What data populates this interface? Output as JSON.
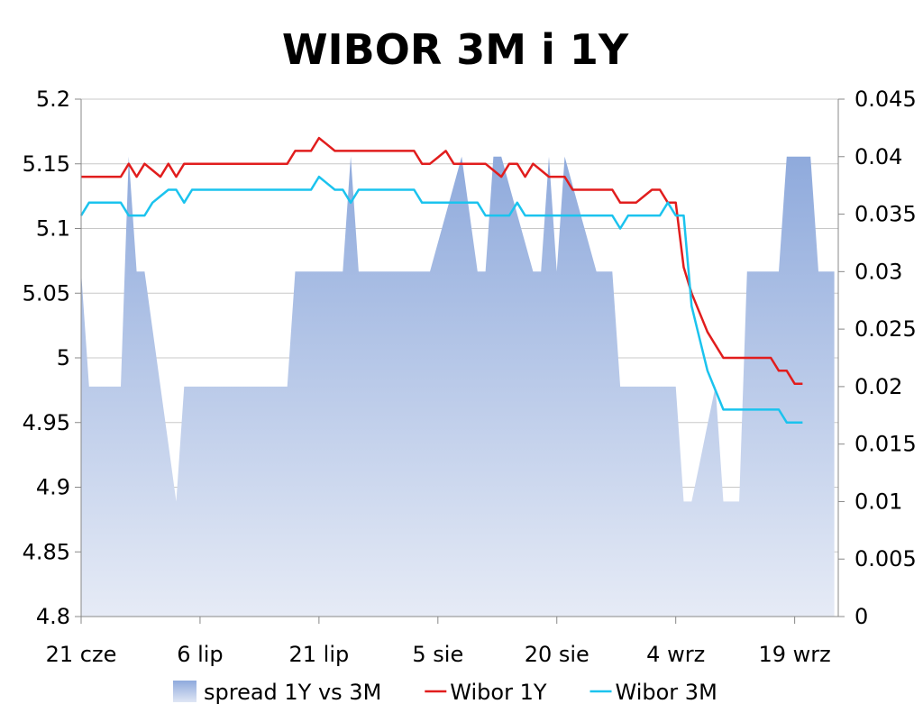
{
  "chart_data": {
    "title": "WIBOR 3M i 1Y",
    "left_axis": {
      "min": 4.8,
      "max": 5.2,
      "ticks": [
        "5.2",
        "5.15",
        "5.1",
        "5.05",
        "5",
        "4.95",
        "4.9",
        "4.85",
        "4.8"
      ]
    },
    "right_axis": {
      "min": 0,
      "max": 0.045,
      "ticks": [
        "0.045",
        "0.04",
        "0.035",
        "0.03",
        "0.025",
        "0.02",
        "0.015",
        "0.01",
        "0.005",
        "0"
      ]
    },
    "x_axis": {
      "start": "21 cze",
      "end": "21 wrz",
      "labels": [
        {
          "text": "21 cze",
          "day": 0
        },
        {
          "text": "6 lip",
          "day": 15
        },
        {
          "text": "21 lip",
          "day": 30
        },
        {
          "text": "5 sie",
          "day": 45
        },
        {
          "text": "20 sie",
          "day": 60
        },
        {
          "text": "4 wrz",
          "day": 75
        },
        {
          "text": "19 wrz",
          "day": 90
        }
      ]
    },
    "series": [
      {
        "name": "spread 1Y vs 3M",
        "type": "area",
        "axis": "right",
        "color": "#8faadc",
        "points": [
          [
            0,
            0.03
          ],
          [
            1,
            0.02
          ],
          [
            2,
            0.02
          ],
          [
            3,
            0.02
          ],
          [
            4,
            0.02
          ],
          [
            5,
            0.02
          ],
          [
            6,
            0.04
          ],
          [
            7,
            0.03
          ],
          [
            8,
            0.03
          ],
          [
            9,
            0.025
          ],
          [
            10,
            0.02
          ],
          [
            11,
            0.015
          ],
          [
            12,
            0.01
          ],
          [
            13,
            0.02
          ],
          [
            14,
            0.02
          ],
          [
            15,
            0.02
          ],
          [
            16,
            0.02
          ],
          [
            17,
            0.02
          ],
          [
            18,
            0.02
          ],
          [
            19,
            0.02
          ],
          [
            20,
            0.02
          ],
          [
            21,
            0.02
          ],
          [
            22,
            0.02
          ],
          [
            23,
            0.02
          ],
          [
            24,
            0.02
          ],
          [
            25,
            0.02
          ],
          [
            26,
            0.02
          ],
          [
            27,
            0.03
          ],
          [
            28,
            0.03
          ],
          [
            29,
            0.03
          ],
          [
            30,
            0.03
          ],
          [
            31,
            0.03
          ],
          [
            32,
            0.03
          ],
          [
            33,
            0.03
          ],
          [
            34,
            0.04
          ],
          [
            35,
            0.03
          ],
          [
            36,
            0.03
          ],
          [
            37,
            0.03
          ],
          [
            38,
            0.03
          ],
          [
            39,
            0.03
          ],
          [
            40,
            0.03
          ],
          [
            41,
            0.03
          ],
          [
            42,
            0.03
          ],
          [
            43,
            0.03
          ],
          [
            44,
            0.03
          ],
          [
            45,
            0.0325
          ],
          [
            46,
            0.035
          ],
          [
            47,
            0.0375
          ],
          [
            48,
            0.04
          ],
          [
            49,
            0.035
          ],
          [
            50,
            0.03
          ],
          [
            51,
            0.03
          ],
          [
            52,
            0.04
          ],
          [
            53,
            0.04
          ],
          [
            54,
            0.0375
          ],
          [
            55,
            0.035
          ],
          [
            56,
            0.0325
          ],
          [
            57,
            0.03
          ],
          [
            58,
            0.03
          ],
          [
            59,
            0.04
          ],
          [
            60,
            0.03
          ],
          [
            61,
            0.04
          ],
          [
            62,
            0.0375
          ],
          [
            63,
            0.035
          ],
          [
            64,
            0.0325
          ],
          [
            65,
            0.03
          ],
          [
            66,
            0.03
          ],
          [
            67,
            0.03
          ],
          [
            68,
            0.02
          ],
          [
            69,
            0.02
          ],
          [
            70,
            0.02
          ],
          [
            71,
            0.02
          ],
          [
            72,
            0.02
          ],
          [
            73,
            0.02
          ],
          [
            74,
            0.02
          ],
          [
            75,
            0.02
          ],
          [
            76,
            0.01
          ],
          [
            77,
            0.01
          ],
          [
            78,
            0.0133
          ],
          [
            79,
            0.0167
          ],
          [
            80,
            0.02
          ],
          [
            81,
            0.01
          ],
          [
            82,
            0.01
          ],
          [
            83,
            0.01
          ],
          [
            84,
            0.03
          ],
          [
            85,
            0.03
          ],
          [
            86,
            0.03
          ],
          [
            87,
            0.03
          ],
          [
            88,
            0.03
          ],
          [
            89,
            0.04
          ],
          [
            90,
            0.04
          ],
          [
            91,
            0.04
          ],
          [
            92,
            0.04
          ],
          [
            93,
            0.03
          ],
          [
            94,
            0.03
          ],
          [
            95,
            0.03
          ]
        ]
      },
      {
        "name": "Wibor 1Y",
        "type": "line",
        "axis": "left",
        "color": "#e11d1d",
        "points": [
          [
            0,
            5.14
          ],
          [
            1,
            5.14
          ],
          [
            2,
            5.14
          ],
          [
            3,
            5.14
          ],
          [
            4,
            5.14
          ],
          [
            5,
            5.14
          ],
          [
            6,
            5.15
          ],
          [
            7,
            5.14
          ],
          [
            8,
            5.15
          ],
          [
            9,
            5.145
          ],
          [
            10,
            5.14
          ],
          [
            11,
            5.15
          ],
          [
            12,
            5.14
          ],
          [
            13,
            5.15
          ],
          [
            14,
            5.15
          ],
          [
            15,
            5.15
          ],
          [
            16,
            5.15
          ],
          [
            17,
            5.15
          ],
          [
            18,
            5.15
          ],
          [
            19,
            5.15
          ],
          [
            20,
            5.15
          ],
          [
            21,
            5.15
          ],
          [
            22,
            5.15
          ],
          [
            23,
            5.15
          ],
          [
            24,
            5.15
          ],
          [
            25,
            5.15
          ],
          [
            26,
            5.15
          ],
          [
            27,
            5.16
          ],
          [
            28,
            5.16
          ],
          [
            29,
            5.16
          ],
          [
            30,
            5.17
          ],
          [
            31,
            5.165
          ],
          [
            32,
            5.16
          ],
          [
            33,
            5.16
          ],
          [
            34,
            5.16
          ],
          [
            35,
            5.16
          ],
          [
            36,
            5.16
          ],
          [
            37,
            5.16
          ],
          [
            38,
            5.16
          ],
          [
            39,
            5.16
          ],
          [
            40,
            5.16
          ],
          [
            41,
            5.16
          ],
          [
            42,
            5.16
          ],
          [
            43,
            5.15
          ],
          [
            44,
            5.15
          ],
          [
            45,
            5.155
          ],
          [
            46,
            5.16
          ],
          [
            47,
            5.15
          ],
          [
            48,
            5.15
          ],
          [
            49,
            5.15
          ],
          [
            50,
            5.15
          ],
          [
            51,
            5.15
          ],
          [
            52,
            5.145
          ],
          [
            53,
            5.14
          ],
          [
            54,
            5.15
          ],
          [
            55,
            5.15
          ],
          [
            56,
            5.14
          ],
          [
            57,
            5.15
          ],
          [
            58,
            5.145
          ],
          [
            59,
            5.14
          ],
          [
            60,
            5.14
          ],
          [
            61,
            5.14
          ],
          [
            62,
            5.13
          ],
          [
            63,
            5.13
          ],
          [
            64,
            5.13
          ],
          [
            65,
            5.13
          ],
          [
            66,
            5.13
          ],
          [
            67,
            5.13
          ],
          [
            68,
            5.12
          ],
          [
            69,
            5.12
          ],
          [
            70,
            5.12
          ],
          [
            71,
            5.125
          ],
          [
            72,
            5.13
          ],
          [
            73,
            5.13
          ],
          [
            74,
            5.12
          ],
          [
            75,
            5.12
          ],
          [
            76,
            5.07
          ],
          [
            77,
            5.05
          ],
          [
            78,
            5.035
          ],
          [
            79,
            5.02
          ],
          [
            80,
            5.01
          ],
          [
            81,
            5.0
          ],
          [
            82,
            5.0
          ],
          [
            83,
            5.0
          ],
          [
            84,
            5.0
          ],
          [
            85,
            5.0
          ],
          [
            86,
            5.0
          ],
          [
            87,
            5.0
          ],
          [
            88,
            4.99
          ],
          [
            89,
            4.99
          ],
          [
            90,
            4.98
          ],
          [
            91,
            4.98
          ]
        ]
      },
      {
        "name": "Wibor 3M",
        "type": "line",
        "axis": "left",
        "color": "#1bc3ee",
        "points": [
          [
            0,
            5.11
          ],
          [
            1,
            5.12
          ],
          [
            2,
            5.12
          ],
          [
            3,
            5.12
          ],
          [
            4,
            5.12
          ],
          [
            5,
            5.12
          ],
          [
            6,
            5.11
          ],
          [
            7,
            5.11
          ],
          [
            8,
            5.11
          ],
          [
            9,
            5.12
          ],
          [
            10,
            5.125
          ],
          [
            11,
            5.13
          ],
          [
            12,
            5.13
          ],
          [
            13,
            5.12
          ],
          [
            14,
            5.13
          ],
          [
            15,
            5.13
          ],
          [
            16,
            5.13
          ],
          [
            17,
            5.13
          ],
          [
            18,
            5.13
          ],
          [
            19,
            5.13
          ],
          [
            20,
            5.13
          ],
          [
            21,
            5.13
          ],
          [
            22,
            5.13
          ],
          [
            23,
            5.13
          ],
          [
            24,
            5.13
          ],
          [
            25,
            5.13
          ],
          [
            26,
            5.13
          ],
          [
            27,
            5.13
          ],
          [
            28,
            5.13
          ],
          [
            29,
            5.13
          ],
          [
            30,
            5.14
          ],
          [
            31,
            5.135
          ],
          [
            32,
            5.13
          ],
          [
            33,
            5.13
          ],
          [
            34,
            5.12
          ],
          [
            35,
            5.13
          ],
          [
            36,
            5.13
          ],
          [
            37,
            5.13
          ],
          [
            38,
            5.13
          ],
          [
            39,
            5.13
          ],
          [
            40,
            5.13
          ],
          [
            41,
            5.13
          ],
          [
            42,
            5.13
          ],
          [
            43,
            5.12
          ],
          [
            44,
            5.12
          ],
          [
            45,
            5.12
          ],
          [
            46,
            5.12
          ],
          [
            47,
            5.12
          ],
          [
            48,
            5.12
          ],
          [
            49,
            5.12
          ],
          [
            50,
            5.12
          ],
          [
            51,
            5.11
          ],
          [
            52,
            5.11
          ],
          [
            53,
            5.11
          ],
          [
            54,
            5.11
          ],
          [
            55,
            5.12
          ],
          [
            56,
            5.11
          ],
          [
            57,
            5.11
          ],
          [
            58,
            5.11
          ],
          [
            59,
            5.11
          ],
          [
            60,
            5.11
          ],
          [
            61,
            5.11
          ],
          [
            62,
            5.11
          ],
          [
            63,
            5.11
          ],
          [
            64,
            5.11
          ],
          [
            65,
            5.11
          ],
          [
            66,
            5.11
          ],
          [
            67,
            5.11
          ],
          [
            68,
            5.1
          ],
          [
            69,
            5.11
          ],
          [
            70,
            5.11
          ],
          [
            71,
            5.11
          ],
          [
            72,
            5.11
          ],
          [
            73,
            5.11
          ],
          [
            74,
            5.12
          ],
          [
            75,
            5.11
          ],
          [
            76,
            5.11
          ],
          [
            77,
            5.04
          ],
          [
            78,
            5.015
          ],
          [
            79,
            4.99
          ],
          [
            80,
            4.975
          ],
          [
            81,
            4.96
          ],
          [
            82,
            4.96
          ],
          [
            83,
            4.96
          ],
          [
            84,
            4.96
          ],
          [
            85,
            4.96
          ],
          [
            86,
            4.96
          ],
          [
            87,
            4.96
          ],
          [
            88,
            4.96
          ],
          [
            89,
            4.95
          ],
          [
            90,
            4.95
          ],
          [
            91,
            4.95
          ]
        ]
      }
    ],
    "grid": true,
    "legend": {
      "position": "bottom",
      "items": [
        {
          "label": "spread 1Y vs 3M",
          "kind": "area"
        },
        {
          "label": "Wibor 1Y",
          "kind": "line"
        },
        {
          "label": "Wibor 3M",
          "kind": "line"
        }
      ]
    }
  }
}
